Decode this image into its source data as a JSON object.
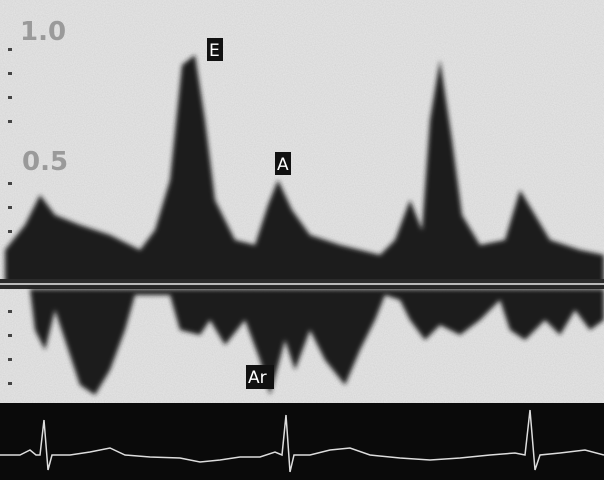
{
  "scale_labels": [
    "1.0",
    "0.5"
  ],
  "wave_labels": [
    "E",
    "A",
    "Ar"
  ]
}
